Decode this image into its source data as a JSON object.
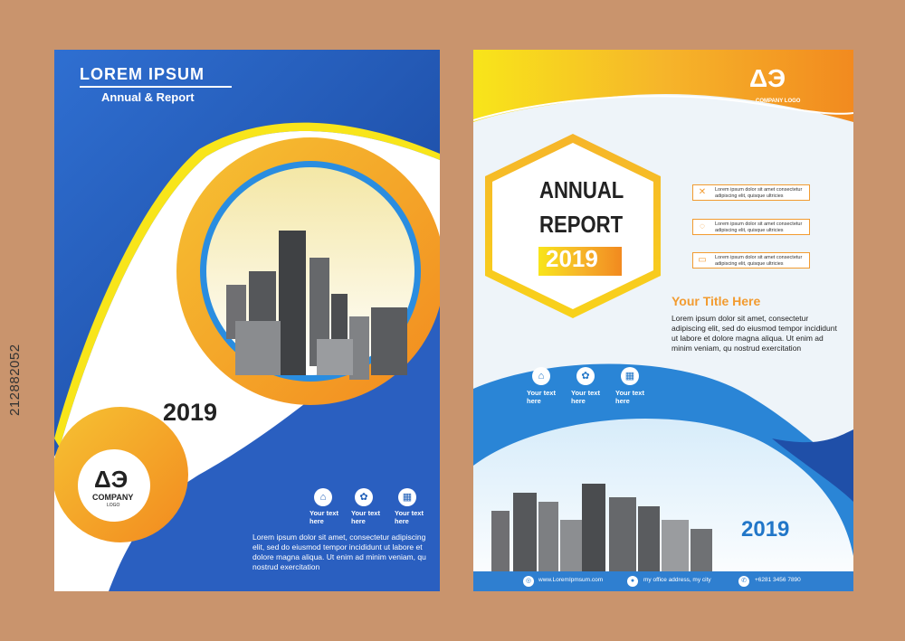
{
  "stock_id": "212882052",
  "left": {
    "title": "LOREM IPSUM",
    "subtitle": "Annual & Report",
    "year": "2019",
    "logo_mark": "ΔЭ",
    "logo_company": "COMPANY",
    "logo_sub": "LOGO",
    "icons": [
      {
        "icon": "home-icon",
        "glyph": "⌂",
        "label": "Your text here"
      },
      {
        "icon": "gear-icon",
        "glyph": "✿",
        "label": "Your text here"
      },
      {
        "icon": "calendar-icon",
        "glyph": "▦",
        "label": "Your text here"
      }
    ],
    "body": "Lorem ipsum dolor sit amet, consectetur adipiscing elit, sed do eiusmod tempor incididunt ut labore et dolore magna aliqua. Ut enim ad minim veniam, qu nostrud exercitation"
  },
  "right": {
    "logo_mark": "ΔЭ",
    "logo_text": "COMPANY LOGO",
    "annual": "ANNUAL",
    "report": "REPORT",
    "year_badge": "2019",
    "rows": [
      {
        "icon": "tools-icon",
        "glyph": "✕",
        "text": "Lorem ipsum dolor sit amet consectetur adipiscing elit, quisque ultricies"
      },
      {
        "icon": "refresh-icon",
        "glyph": "◌",
        "text": "Lorem ipsum dolor sit amet consectetur adipiscing elit, quisque ultricies"
      },
      {
        "icon": "card-icon",
        "glyph": "▭",
        "text": "Lorem ipsum dolor sit amet consectetur adipiscing elit, quisque ultricies"
      }
    ],
    "your_title": "Your Title Here",
    "body": "Lorem ipsum dolor sit amet, consectetur adipiscing elit, sed do eiusmod tempor incididunt ut labore et dolore magna aliqua. Ut enim ad minim veniam, qu nostrud exercitation",
    "icons": [
      {
        "icon": "home-icon",
        "glyph": "⌂",
        "label": "Your text here"
      },
      {
        "icon": "gear-icon",
        "glyph": "✿",
        "label": "Your text here"
      },
      {
        "icon": "calendar-icon",
        "glyph": "▦",
        "label": "Your text here"
      }
    ],
    "year": "2019",
    "footer": {
      "website": "www.LoremIpmsum.com",
      "address": "my office address, my city",
      "phone": "+6281 3456 7890"
    }
  },
  "colors": {
    "background": "#c9946d",
    "blue": "#2f6fd1",
    "orange": "#f29b30",
    "yellow": "#f8d21a"
  }
}
